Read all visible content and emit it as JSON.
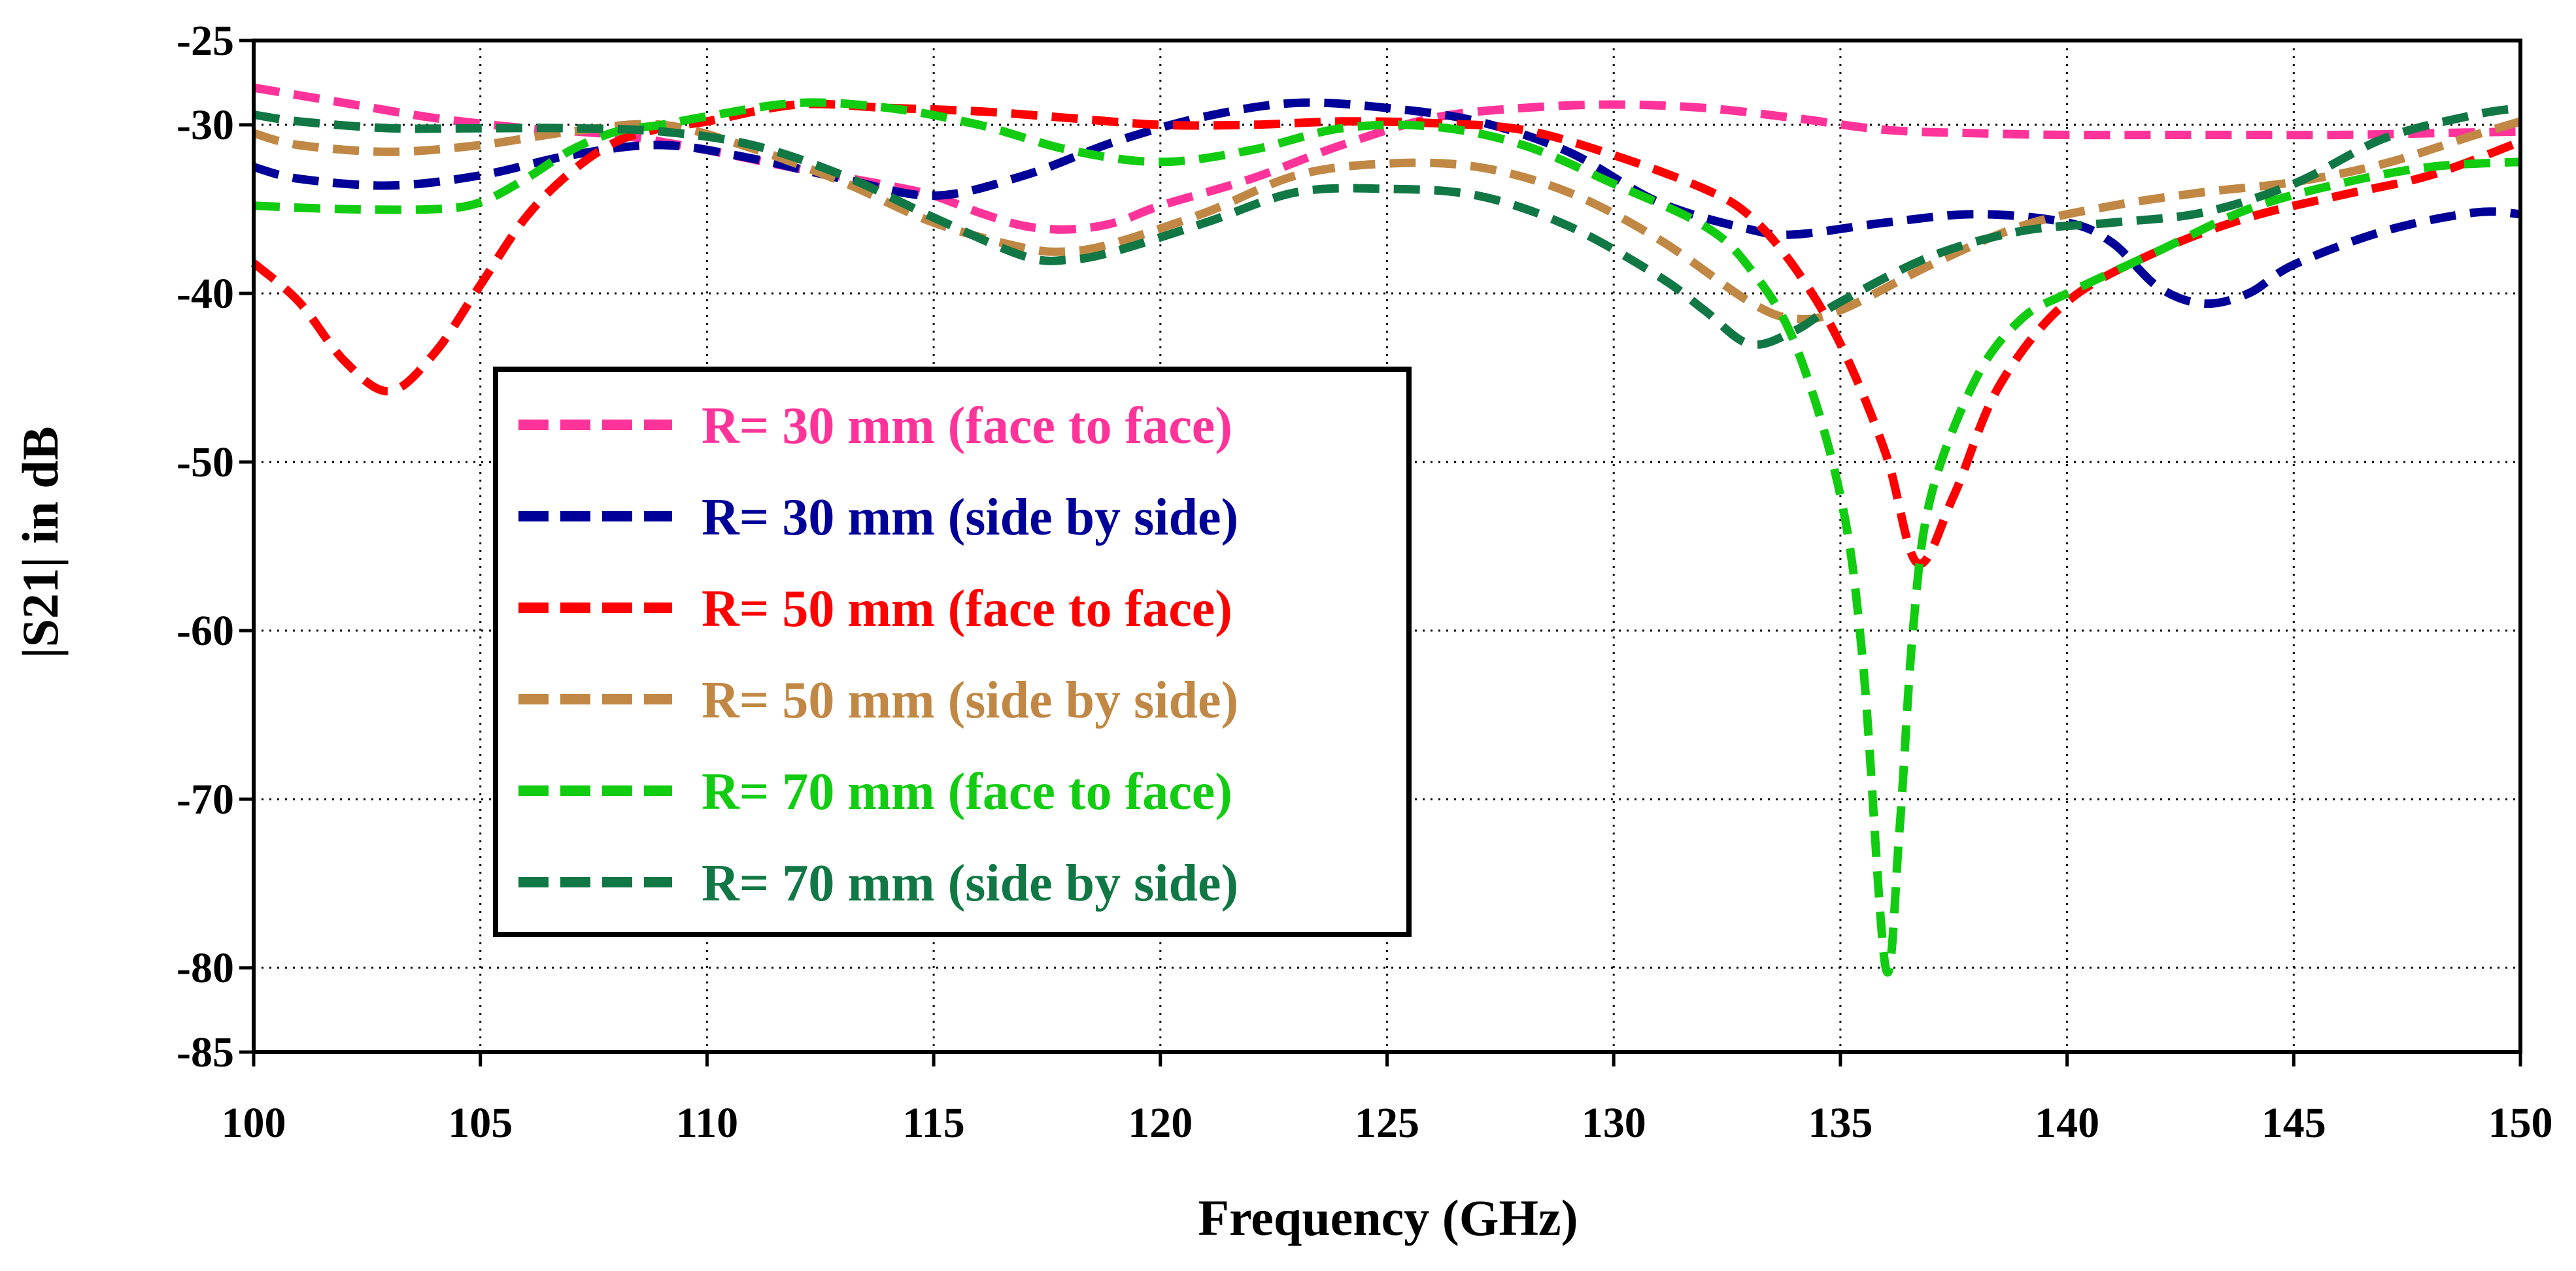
{
  "chart_data": {
    "type": "line",
    "title": "",
    "xlabel": "Frequency (GHz)",
    "ylabel": "|S21| in dB",
    "xlim": [
      100,
      150
    ],
    "ylim": [
      -85,
      -25
    ],
    "xticks": [
      100,
      105,
      110,
      115,
      120,
      125,
      130,
      135,
      140,
      145,
      150
    ],
    "yticks": [
      -25,
      -30,
      -40,
      -50,
      -60,
      -70,
      -80,
      -85
    ],
    "ygrid": [
      -30,
      -40,
      -50,
      -60,
      -70,
      -80
    ],
    "grid": true,
    "legend_position": "center-left",
    "series": [
      {
        "name": "R= 30 mm (face to face)",
        "color": "#ff3399",
        "x": [
          100,
          102,
          104,
          106,
          108,
          110,
          112,
          114,
          115,
          116,
          117,
          118,
          119,
          120,
          122,
          124,
          126,
          128,
          130,
          132,
          134,
          136,
          138,
          140,
          142,
          144,
          146,
          148,
          150
        ],
        "y": [
          -27.8,
          -28.7,
          -29.6,
          -30.2,
          -30.6,
          -31.5,
          -32.6,
          -33.6,
          -34.2,
          -35.2,
          -36.0,
          -36.2,
          -35.8,
          -34.8,
          -33.2,
          -31.2,
          -29.6,
          -29.0,
          -28.8,
          -29.0,
          -29.6,
          -30.3,
          -30.5,
          -30.6,
          -30.6,
          -30.6,
          -30.6,
          -30.5,
          -30.4
        ]
      },
      {
        "name": "R= 30 mm (side by side)",
        "color": "#000099",
        "x": [
          100,
          101,
          103,
          105,
          107,
          109,
          111,
          113,
          115,
          117,
          119,
          121,
          123,
          125,
          127,
          129,
          131,
          133,
          134,
          136,
          138,
          140,
          141,
          142,
          143,
          144,
          145,
          147,
          149,
          150
        ],
        "y": [
          -32.5,
          -33.2,
          -33.6,
          -33.0,
          -31.8,
          -31.2,
          -32.0,
          -33.2,
          -34.2,
          -33.0,
          -31.0,
          -29.5,
          -28.7,
          -29.0,
          -29.8,
          -31.6,
          -34.6,
          -36.2,
          -36.5,
          -35.8,
          -35.3,
          -35.8,
          -37.0,
          -39.6,
          -40.6,
          -40.0,
          -38.3,
          -36.3,
          -35.2,
          -35.3
        ]
      },
      {
        "name": "R= 50 mm (face to face)",
        "color": "#ff0000",
        "x": [
          100,
          101,
          102,
          103,
          104,
          105,
          106,
          107,
          108,
          109,
          110,
          112,
          114,
          116,
          118,
          120,
          122,
          124,
          126,
          128,
          130,
          132,
          133,
          134,
          135,
          136,
          136.7,
          137.5,
          138.5,
          140,
          142,
          144,
          146,
          148,
          150
        ],
        "y": [
          -38.2,
          -40.5,
          -44.0,
          -45.8,
          -43.5,
          -39.5,
          -35.5,
          -32.8,
          -31.0,
          -30.2,
          -29.8,
          -28.8,
          -29.0,
          -29.2,
          -29.6,
          -30.0,
          -30.0,
          -29.8,
          -29.9,
          -30.3,
          -31.8,
          -33.8,
          -35.4,
          -38.5,
          -43.0,
          -49.5,
          -56.0,
          -52.0,
          -45.5,
          -40.5,
          -37.5,
          -35.5,
          -34.2,
          -33.0,
          -31.0
        ]
      },
      {
        "name": "R= 50 mm (side by side)",
        "color": "#c08844",
        "x": [
          100,
          101,
          103,
          105,
          107,
          109,
          111,
          113,
          115,
          117,
          118,
          119,
          121,
          123,
          125,
          127,
          129,
          131,
          133,
          134,
          135,
          137,
          139,
          141,
          143,
          145,
          147,
          149,
          150
        ],
        "y": [
          -30.5,
          -31.2,
          -31.6,
          -31.2,
          -30.4,
          -30.0,
          -31.4,
          -33.4,
          -35.8,
          -37.3,
          -37.5,
          -37.0,
          -35.2,
          -33.0,
          -32.3,
          -32.5,
          -34.0,
          -36.8,
          -40.5,
          -41.5,
          -41.0,
          -38.3,
          -36.0,
          -34.8,
          -34.0,
          -33.4,
          -32.3,
          -30.6,
          -29.8
        ]
      },
      {
        "name": "R= 70 mm (face to face)",
        "color": "#11cc11",
        "x": [
          100,
          102,
          104,
          105,
          106,
          107,
          108,
          109,
          110,
          112,
          114,
          116,
          118,
          120,
          122,
          124,
          126,
          128,
          130,
          132,
          133,
          134,
          135,
          135.5,
          136,
          136.3,
          136.6,
          137,
          138,
          139,
          140,
          142,
          144,
          146,
          148,
          150
        ],
        "y": [
          -34.8,
          -35.0,
          -35.0,
          -34.6,
          -33.2,
          -31.5,
          -30.4,
          -30.0,
          -29.5,
          -28.7,
          -29.0,
          -30.0,
          -31.5,
          -32.2,
          -31.5,
          -30.2,
          -30.1,
          -31.2,
          -33.5,
          -36.0,
          -38.5,
          -43.0,
          -52.0,
          -62.0,
          -80.0,
          -72.0,
          -60.0,
          -52.0,
          -45.0,
          -41.5,
          -40.0,
          -37.5,
          -35.0,
          -33.5,
          -32.5,
          -32.2
        ]
      },
      {
        "name": "R= 70 mm (side by side)",
        "color": "#117744",
        "x": [
          100,
          101,
          103,
          105,
          107,
          109,
          111,
          113,
          115,
          117,
          118,
          119,
          121,
          123,
          125,
          127,
          129,
          131,
          132,
          133,
          134,
          135,
          137,
          139,
          141,
          143,
          145,
          147,
          149,
          150
        ],
        "y": [
          -29.4,
          -29.8,
          -30.2,
          -30.2,
          -30.2,
          -30.4,
          -31.2,
          -33.0,
          -35.5,
          -37.8,
          -38.0,
          -37.5,
          -35.8,
          -34.0,
          -33.8,
          -34.2,
          -36.0,
          -39.0,
          -41.0,
          -43.0,
          -42.2,
          -40.5,
          -37.8,
          -36.3,
          -35.8,
          -35.2,
          -33.5,
          -30.8,
          -29.4,
          -29.0
        ]
      }
    ]
  }
}
